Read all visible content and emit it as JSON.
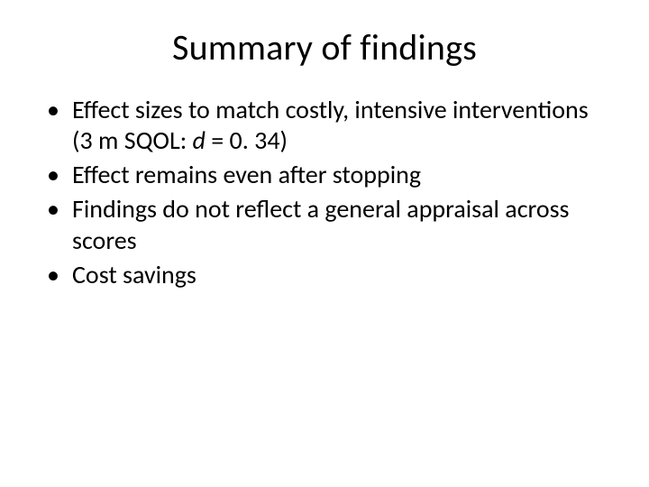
{
  "background_color": "#ffffff",
  "text_color": "#000000",
  "slide": {
    "title": "Summary of findings",
    "title_fontsize": 40,
    "bullets": [
      {
        "pre": "Effect sizes to match costly, intensive interventions (3 m SQOL: ",
        "italic": "d",
        "post": " = 0. 34)"
      },
      {
        "pre": "Effect remains even after stopping",
        "italic": "",
        "post": ""
      },
      {
        "pre": "Findings do not reflect a general appraisal across scores",
        "italic": "",
        "post": ""
      },
      {
        "pre": "Cost savings",
        "italic": "",
        "post": ""
      }
    ],
    "bullet_fontsize": 28,
    "bullet_line_height": 1.22
  }
}
